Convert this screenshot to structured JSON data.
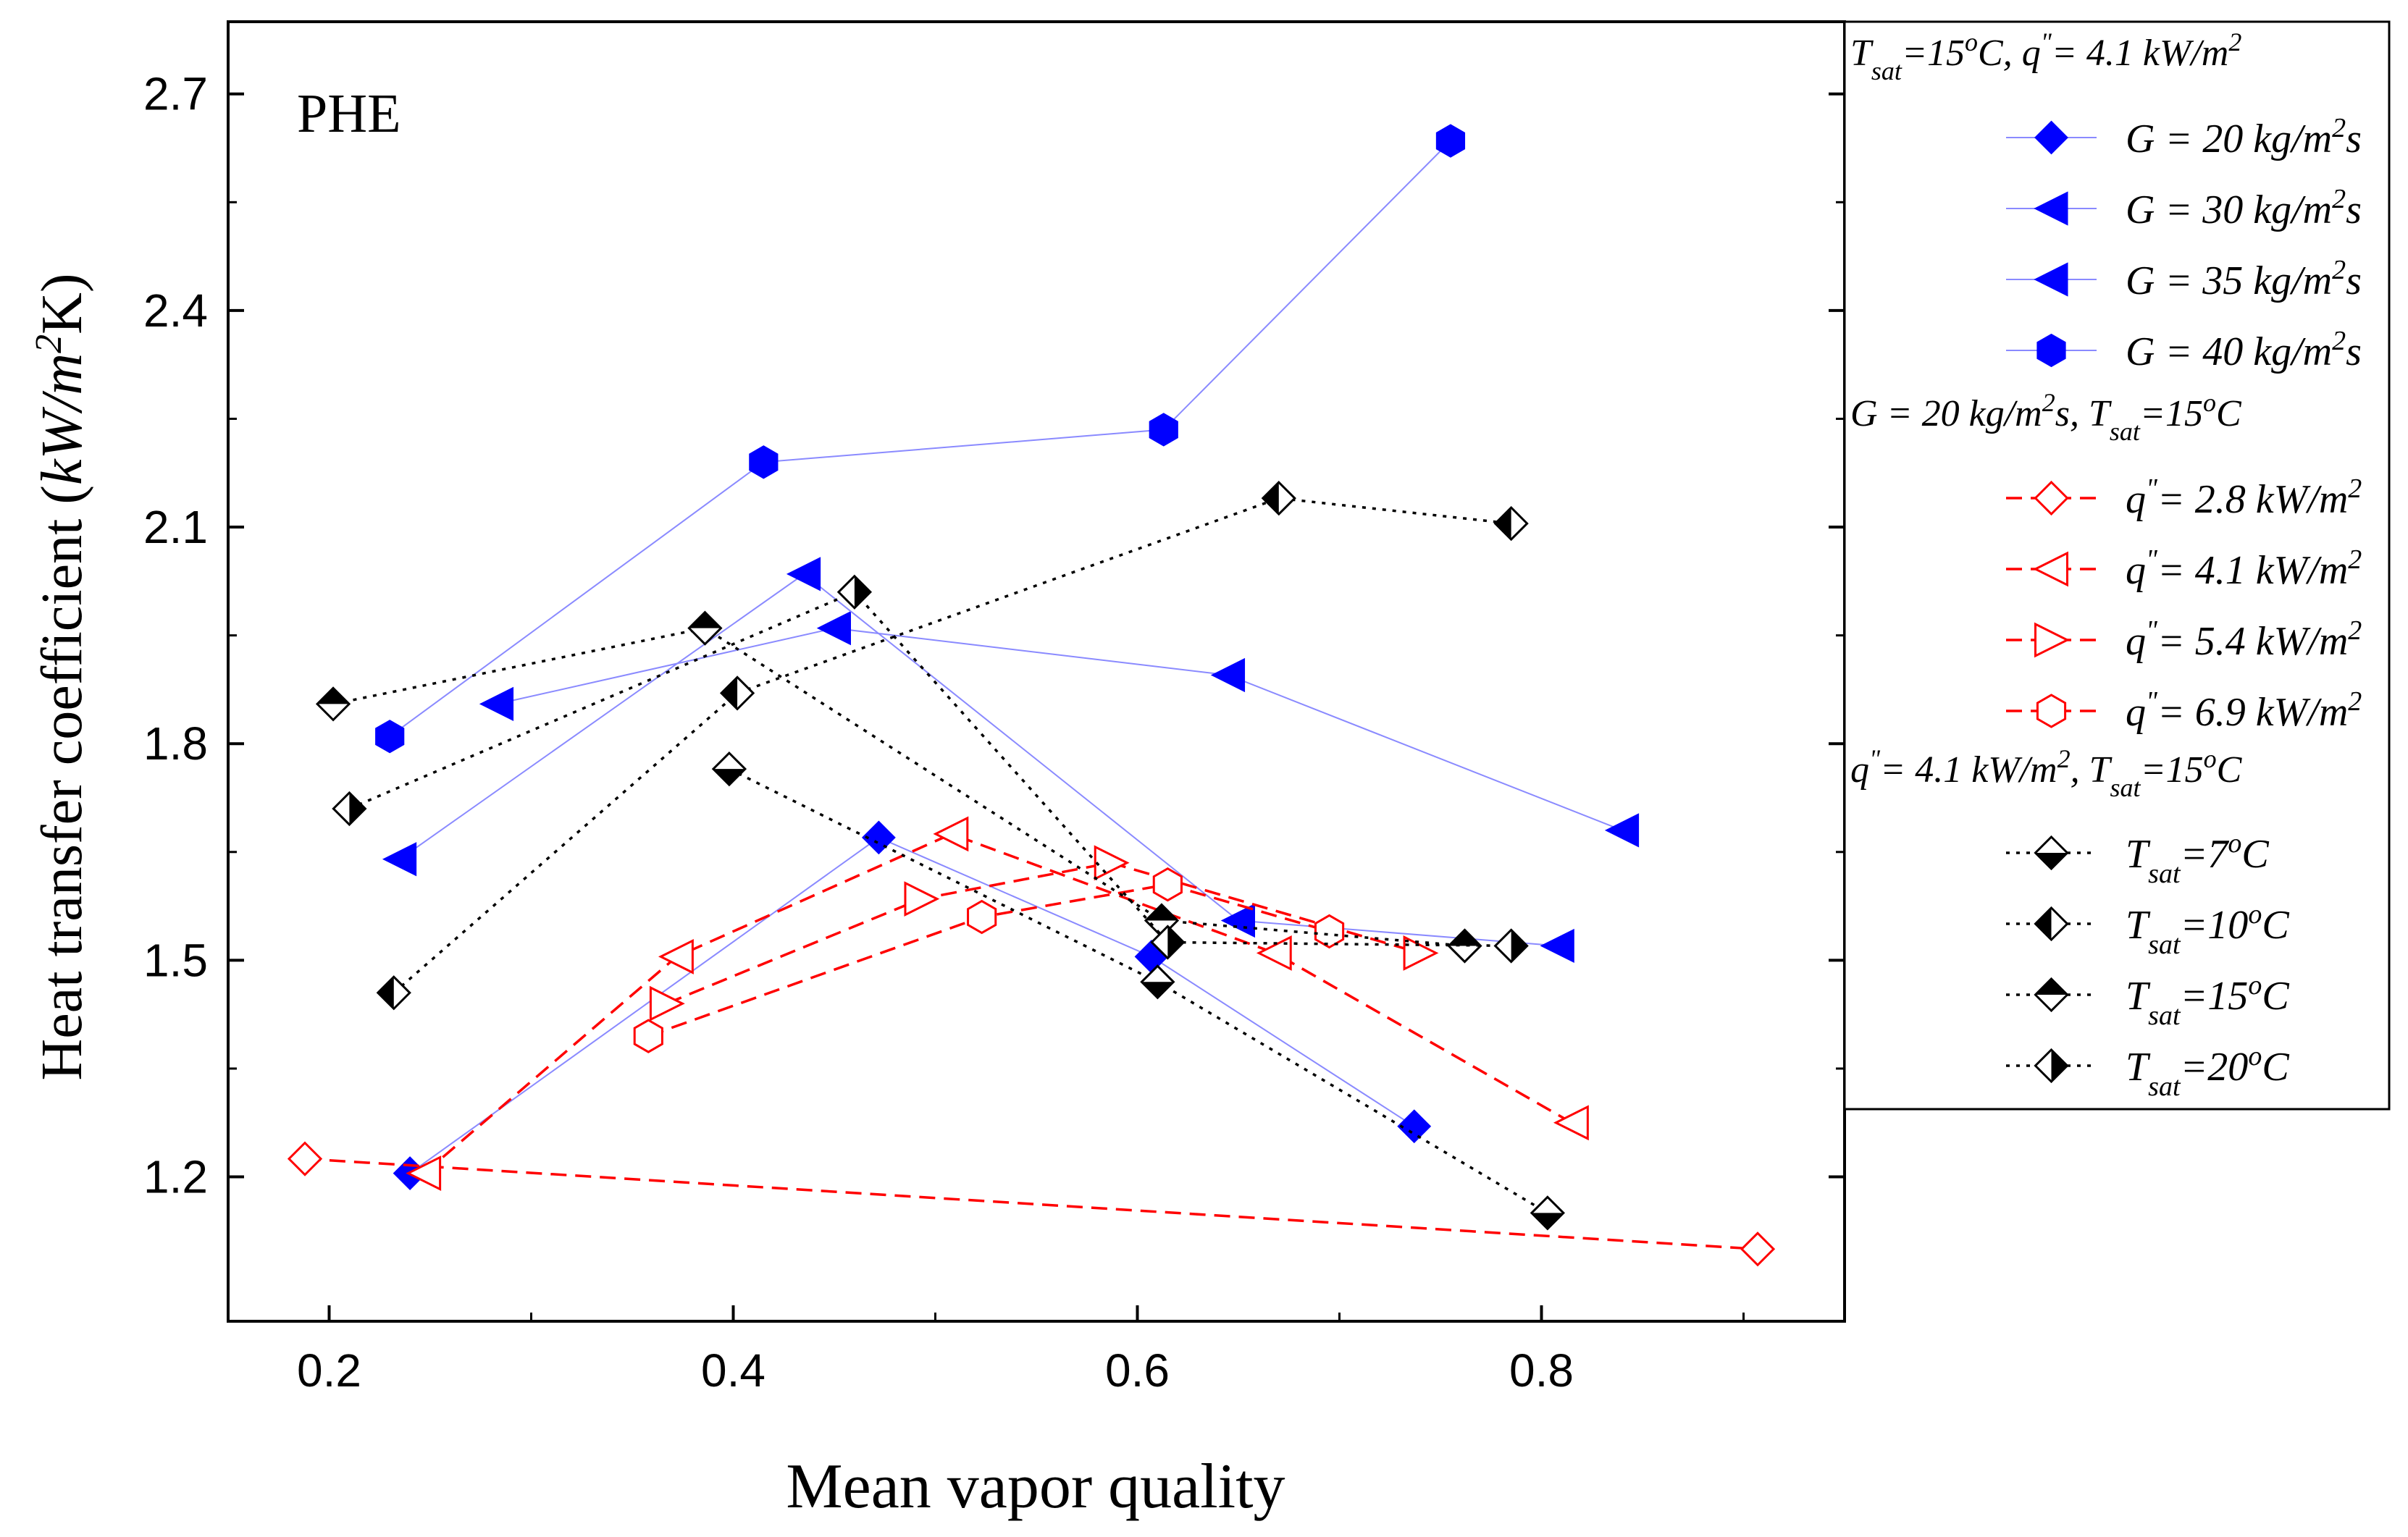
{
  "chart_data": {
    "type": "scatter",
    "title": "",
    "annotation": "PHE",
    "xlabel": "Mean vapor quality",
    "ylabel": "Heat transfer coefficient (kW/m²K)",
    "ylabel_parts": {
      "prefix": "Heat transfer coefficient (",
      "unit": "kW/m",
      "sup": "2",
      "suffix": "K)"
    },
    "xlim": [
      0.15,
      0.95
    ],
    "ylim": [
      1.0,
      2.8
    ],
    "x_ticks": [
      0.2,
      0.4,
      0.6,
      0.8
    ],
    "x_tick_labels": [
      "0.2",
      "0.4",
      "0.6",
      "0.8"
    ],
    "y_ticks": [
      1.2,
      1.5,
      1.8,
      2.1,
      2.4,
      2.7
    ],
    "y_tick_labels": [
      "1.2",
      "1.5",
      "1.8",
      "2.1",
      "2.4",
      "2.7"
    ],
    "grid": false,
    "legend_position": "right-outside",
    "legend_groups": [
      {
        "header": "T_sat=15°C, q''= 4.1 kW/m²",
        "header_parts": [
          "T",
          "sat",
          "=15",
          "o",
          "C, q",
          "\"",
          "= 4.1 kW/m",
          "2"
        ],
        "series_ids": [
          "G20",
          "G30",
          "G35",
          "G40"
        ]
      },
      {
        "header": "G = 20 kg/m²s, T_sat=15°C",
        "header_parts": [
          "G = 20 kg/m",
          "2",
          "s, T",
          "sat",
          "=15",
          "o",
          "C"
        ],
        "series_ids": [
          "q28",
          "q41",
          "q54",
          "q69"
        ]
      },
      {
        "header": "q''= 4.1 kW/m², T_sat=15°C",
        "header_parts": [
          "q",
          "\"",
          "= 4.1 kW/m",
          "2",
          ", T",
          "sat",
          "=15",
          "o",
          "C"
        ],
        "series_ids": [
          "T7",
          "T10",
          "T15",
          "T20"
        ]
      }
    ],
    "series": [
      {
        "id": "G20",
        "name": "G = 20 kg/m²s",
        "label_parts": [
          "G = 20 kg/m",
          "2",
          "s"
        ],
        "color": "#0000ff",
        "line": "solid",
        "marker": "diamond-filled",
        "x": [
          0.24,
          0.472,
          0.607,
          0.737
        ],
        "y": [
          1.205,
          1.67,
          1.505,
          1.27
        ]
      },
      {
        "id": "G30",
        "name": "G = 30 kg/m²s",
        "label_parts": [
          "G = 30 kg/m",
          "2",
          "s"
        ],
        "color": "#0000ff",
        "line": "solid",
        "marker": "triangle-left-filled",
        "x": [
          0.283,
          0.45,
          0.645,
          0.84
        ],
        "y": [
          1.855,
          1.96,
          1.895,
          1.68
        ]
      },
      {
        "id": "G35",
        "name": "G = 35 kg/m²s",
        "label_parts": [
          "G = 35 kg/m",
          "2",
          "s"
        ],
        "color": "#0000ff",
        "line": "solid",
        "marker": "triangle-left-filled",
        "x": [
          0.235,
          0.435,
          0.65,
          0.808
        ],
        "y": [
          1.64,
          2.035,
          1.555,
          1.52
        ]
      },
      {
        "id": "G40",
        "name": "G = 40 kg/m²s",
        "label_parts": [
          "G = 40 kg/m",
          "2",
          "s"
        ],
        "color": "#0000ff",
        "line": "solid",
        "marker": "hexagon-filled",
        "x": [
          0.23,
          0.415,
          0.613,
          0.755
        ],
        "y": [
          1.81,
          2.19,
          2.235,
          2.635
        ]
      },
      {
        "id": "q28",
        "name": "q''= 2.8 kW/m²",
        "label_parts": [
          "q",
          "\"",
          "= 2.8 kW/m",
          "2"
        ],
        "color": "#ff0000",
        "line": "dashed",
        "marker": "diamond-open",
        "x": [
          0.188,
          0.907
        ],
        "y": [
          1.225,
          1.1
        ]
      },
      {
        "id": "q41",
        "name": "q''= 4.1 kW/m²",
        "label_parts": [
          "q",
          "\"",
          "= 4.1 kW/m",
          "2"
        ],
        "color": "#ff0000",
        "line": "dashed",
        "marker": "triangle-left-open",
        "x": [
          0.247,
          0.372,
          0.508,
          0.668,
          0.815
        ],
        "y": [
          1.205,
          1.505,
          1.675,
          1.51,
          1.275
        ]
      },
      {
        "id": "q54",
        "name": "q''= 5.4 kW/m²",
        "label_parts": [
          "q",
          "\"",
          "= 5.4 kW/m",
          "2"
        ],
        "color": "#ff0000",
        "line": "dashed",
        "marker": "triangle-right-open",
        "x": [
          0.367,
          0.493,
          0.587,
          0.74
        ],
        "y": [
          1.44,
          1.585,
          1.635,
          1.51
        ]
      },
      {
        "id": "q69",
        "name": "q''= 6.9 kW/m²",
        "label_parts": [
          "q",
          "\"",
          "= 6.9 kW/m",
          "2"
        ],
        "color": "#ff0000",
        "line": "dashed",
        "marker": "hexagon-open",
        "x": [
          0.358,
          0.523,
          0.615,
          0.695
        ],
        "y": [
          1.395,
          1.56,
          1.605,
          1.54
        ]
      },
      {
        "id": "T7",
        "name": "T_sat=7°C",
        "label_parts": [
          "T",
          "sat",
          "=7",
          "o",
          "C"
        ],
        "color": "#000000",
        "line": "dotted",
        "marker": "diamond-half-bottom",
        "x": [
          0.398,
          0.61,
          0.803
        ],
        "y": [
          1.765,
          1.47,
          1.15
        ]
      },
      {
        "id": "T10",
        "name": "T_sat=10°C",
        "label_parts": [
          "T",
          "sat",
          "=10",
          "o",
          "C"
        ],
        "color": "#000000",
        "line": "dotted",
        "marker": "diamond-half-left",
        "x": [
          0.232,
          0.402,
          0.67,
          0.785
        ],
        "y": [
          1.455,
          1.87,
          2.14,
          2.105
        ]
      },
      {
        "id": "T15",
        "name": "T_sat=15°C",
        "label_parts": [
          "T",
          "sat",
          "=15",
          "o",
          "C"
        ],
        "color": "#000000",
        "line": "dotted",
        "marker": "diamond-half-top",
        "x": [
          0.202,
          0.386,
          0.612,
          0.762
        ],
        "y": [
          1.855,
          1.96,
          1.555,
          1.52
        ]
      },
      {
        "id": "T20",
        "name": "T_sat=20°C",
        "label_parts": [
          "T",
          "sat",
          "=20",
          "o",
          "C"
        ],
        "color": "#000000",
        "line": "dotted",
        "marker": "diamond-half-right",
        "x": [
          0.21,
          0.46,
          0.615,
          0.785
        ],
        "y": [
          1.71,
          2.01,
          1.525,
          1.52
        ]
      }
    ]
  }
}
